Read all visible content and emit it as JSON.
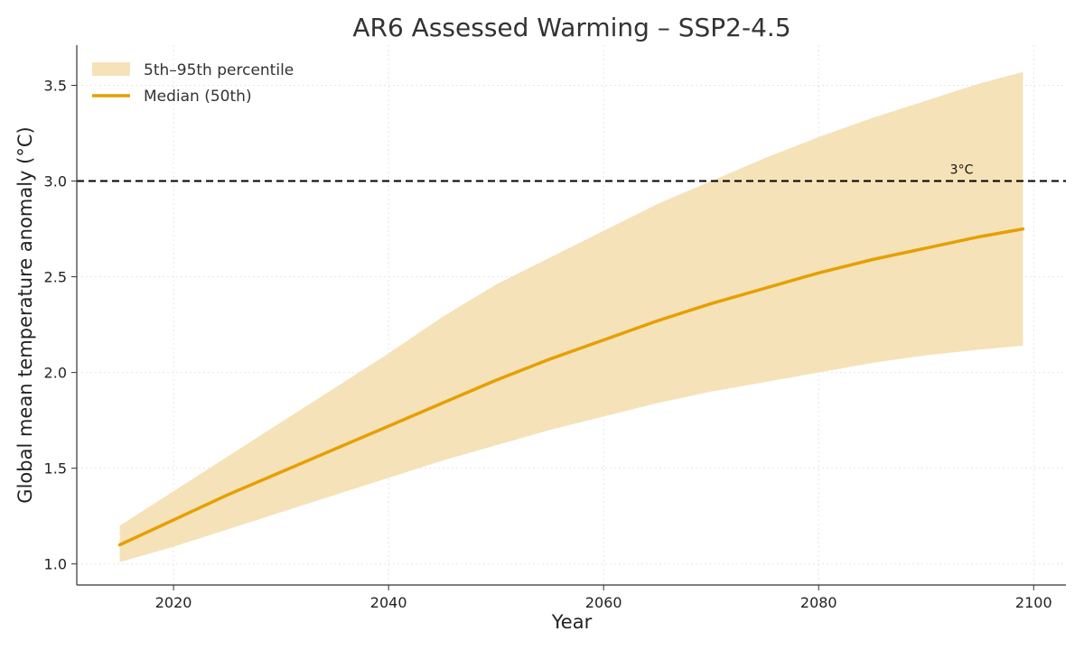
{
  "chart_data": {
    "type": "area",
    "title": "AR6 Assessed Warming – SSP2-4.5",
    "xlabel": "Year",
    "ylabel": "Global mean temperature anomaly (°C)",
    "xlim": [
      2011,
      2103
    ],
    "ylim": [
      0.89,
      3.71
    ],
    "xticks": [
      2020,
      2040,
      2060,
      2080,
      2100
    ],
    "yticks": [
      1.0,
      1.5,
      2.0,
      2.5,
      3.0,
      3.5
    ],
    "grid": true,
    "legend_position": "top-left",
    "x": [
      2015,
      2020,
      2025,
      2030,
      2035,
      2040,
      2045,
      2050,
      2055,
      2060,
      2065,
      2070,
      2075,
      2080,
      2085,
      2090,
      2095,
      2099
    ],
    "series": [
      {
        "name": "Median (50th)",
        "kind": "line",
        "color": "#E69F00",
        "values": [
          1.1,
          1.23,
          1.36,
          1.48,
          1.6,
          1.72,
          1.84,
          1.96,
          2.07,
          2.17,
          2.27,
          2.36,
          2.44,
          2.52,
          2.59,
          2.65,
          2.71,
          2.75
        ]
      },
      {
        "name": "5th–95th percentile",
        "kind": "band",
        "color": "#F6E2B8",
        "lower": [
          1.01,
          1.09,
          1.18,
          1.27,
          1.36,
          1.45,
          1.54,
          1.62,
          1.7,
          1.77,
          1.84,
          1.9,
          1.95,
          2.0,
          2.05,
          2.09,
          2.12,
          2.14
        ],
        "upper": [
          1.2,
          1.38,
          1.56,
          1.74,
          1.92,
          2.1,
          2.29,
          2.46,
          2.6,
          2.74,
          2.88,
          3.0,
          3.12,
          3.23,
          3.33,
          3.42,
          3.51,
          3.57
        ]
      }
    ],
    "reference_line": {
      "y": 3.0,
      "label": "3°C",
      "style": "dashed",
      "color": "#000000"
    }
  }
}
